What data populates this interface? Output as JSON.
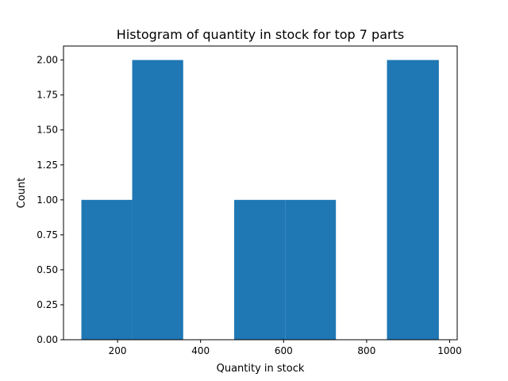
{
  "chart_data": {
    "type": "bar",
    "title": "Histogram of quantity in stock for top 7 parts",
    "xlabel": "Quantity in stock",
    "ylabel": "Count",
    "xlim": [
      69.8,
      1018.2
    ],
    "ylim": [
      0,
      2.1
    ],
    "xticks": [
      200,
      400,
      600,
      800,
      1000
    ],
    "xtick_labels": [
      "200",
      "400",
      "600",
      "800",
      "1000"
    ],
    "yticks": [
      0,
      0.25,
      0.5,
      0.75,
      1.0,
      1.25,
      1.5,
      1.75,
      2.0
    ],
    "ytick_labels": [
      "0.00",
      "0.25",
      "0.50",
      "0.75",
      "1.00",
      "1.25",
      "1.50",
      "1.75",
      "2.00"
    ],
    "bin_edges": [
      112.9,
      235.3,
      358.1,
      481.0,
      603.6,
      726.0,
      849.0,
      974.0
    ],
    "values": [
      1,
      2,
      0,
      1,
      1,
      0,
      2
    ],
    "bar_color": "#1f77b4",
    "grid": false,
    "legend": "none"
  }
}
